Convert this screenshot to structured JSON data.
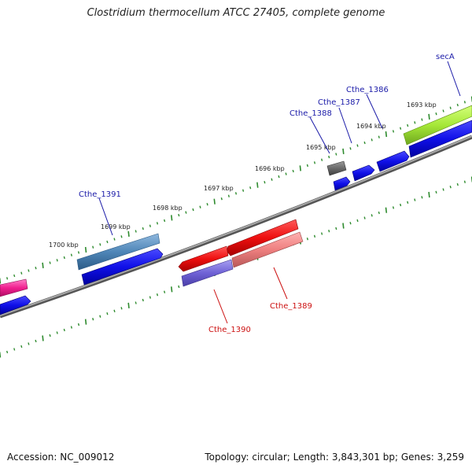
{
  "title": "Clostridium thermocellum ATCC 27405, complete genome",
  "footer": {
    "accession": "Accession: NC_009012",
    "summary": "Topology: circular; Length: 3,843,301 bp; Genes: 3,259"
  },
  "colors": {
    "backbone": "#8a8a8a",
    "tick": "#2e8b2e",
    "label_forward": "#1a1aa8",
    "label_reverse": "#cc1111"
  },
  "kbp_labels": [
    "1693 kbp",
    "1694 kbp",
    "1695 kbp",
    "1696 kbp",
    "1697 kbp",
    "1698 kbp",
    "1699 kbp",
    "1700 kbp"
  ],
  "gene_labels": [
    {
      "text": "secA",
      "strand": "forward"
    },
    {
      "text": "Cthe_1386",
      "strand": "forward"
    },
    {
      "text": "Cthe_1387",
      "strand": "forward"
    },
    {
      "text": "Cthe_1388",
      "strand": "forward"
    },
    {
      "text": "Cthe_1391",
      "strand": "forward"
    },
    {
      "text": "Cthe_1389",
      "strand": "reverse"
    },
    {
      "text": "Cthe_1390",
      "strand": "reverse"
    }
  ]
}
